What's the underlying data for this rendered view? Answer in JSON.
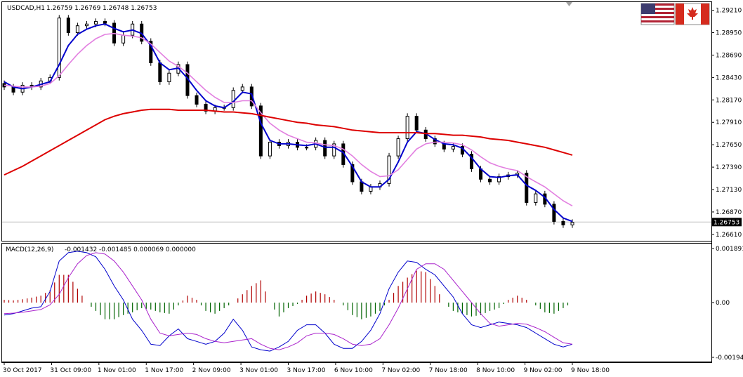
{
  "header": {
    "symbol": "USDCAD,H1",
    "ohlc": "1.26759 1.26769 1.26748 1.26753"
  },
  "macd_header": {
    "name": "MACD(12,26,9)",
    "values": "-0.001432 -0.001485 0.000069 0.000000"
  },
  "flags": {
    "base": "us-flag-icon",
    "quote": "canada-flag-icon"
  },
  "colors": {
    "candles": "#000000",
    "ma_fast": "#0000cc",
    "ma_mid": "#e27fe0",
    "ma_slow": "#dd0000",
    "macd_line": "#0000cc",
    "signal_line": "#aa22cc",
    "hist_pos": "#b00000",
    "hist_neg": "#006400",
    "grid": "#c0c0c0",
    "current_price_bg": "#000000"
  },
  "chart_data": [
    {
      "type": "line",
      "title": "USDCAD,H1",
      "price_axis_ticks": [
        "1.29210",
        "1.28950",
        "1.28690",
        "1.28430",
        "1.28170",
        "1.27910",
        "1.27650",
        "1.27390",
        "1.27130",
        "1.26870",
        "1.26610"
      ],
      "ylim": [
        1.2656,
        1.2928
      ],
      "current_price": "1.26753",
      "time_labels": [
        "30 Oct 2017",
        "31 Oct 09:00",
        "1 Nov 01:00",
        "1 Nov 17:00",
        "2 Nov 09:00",
        "3 Nov 01:00",
        "3 Nov 17:00",
        "6 Nov 10:00",
        "7 Nov 02:00",
        "7 Nov 18:00",
        "8 Nov 10:00",
        "9 Nov 02:00",
        "9 Nov 18:00"
      ],
      "series": [
        {
          "values": [
            1.2832,
            1.2826,
            1.2834,
            1.2832,
            1.2839,
            1.2843,
            1.2912,
            1.2895,
            1.2903,
            1.2905,
            1.2908,
            1.2906,
            1.2883,
            1.2892,
            1.2905,
            1.2885,
            1.286,
            1.2838,
            1.2848,
            1.2858,
            1.2822,
            1.2812,
            1.2804,
            1.2808,
            1.2808,
            1.2828,
            1.2832,
            1.281,
            1.2752,
            1.2768,
            1.2764,
            1.2768,
            1.2762,
            1.2762,
            1.277,
            1.2752,
            1.2766,
            1.2742,
            1.2722,
            1.2711,
            1.2716,
            1.272,
            1.2752,
            1.2772,
            1.2798,
            1.2782,
            1.2772,
            1.2766,
            1.276,
            1.2763,
            1.2754,
            1.2737,
            1.2725,
            1.2722,
            1.2728,
            1.273,
            1.2732,
            1.2698,
            1.2708,
            1.2696,
            1.2676,
            1.2672,
            1.2675
          ]
        },
        {
          "values": [
            1.2838,
            1.2832,
            1.283,
            1.2832,
            1.2835,
            1.2838,
            1.2858,
            1.288,
            1.2893,
            1.2899,
            1.2903,
            1.2905,
            1.29,
            1.2896,
            1.2898,
            1.2894,
            1.288,
            1.286,
            1.2852,
            1.2854,
            1.2842,
            1.2828,
            1.2816,
            1.281,
            1.2808,
            1.2815,
            1.2826,
            1.2824,
            1.279,
            1.277,
            1.2766,
            1.2766,
            1.2765,
            1.2764,
            1.2766,
            1.2762,
            1.2762,
            1.2756,
            1.274,
            1.2722,
            1.2716,
            1.2716,
            1.2725,
            1.2745,
            1.2768,
            1.278,
            1.2778,
            1.2771,
            1.2766,
            1.2765,
            1.2761,
            1.275,
            1.2737,
            1.2728,
            1.2727,
            1.2729,
            1.273,
            1.2718,
            1.2712,
            1.2704,
            1.269,
            1.268,
            1.2676
          ]
        },
        {
          "values": [
            1.2834,
            1.2833,
            1.2832,
            1.2832,
            1.2833,
            1.2836,
            1.2845,
            1.2858,
            1.287,
            1.288,
            1.2888,
            1.2893,
            1.2894,
            1.2892,
            1.2891,
            1.2889,
            1.2882,
            1.2872,
            1.2862,
            1.2856,
            1.2848,
            1.2838,
            1.2828,
            1.282,
            1.2814,
            1.2814,
            1.2816,
            1.2816,
            1.2802,
            1.279,
            1.2782,
            1.2776,
            1.2772,
            1.2768,
            1.2767,
            1.2765,
            1.2764,
            1.276,
            1.2752,
            1.2742,
            1.2734,
            1.2728,
            1.2729,
            1.2736,
            1.2748,
            1.276,
            1.2766,
            1.2768,
            1.2768,
            1.2767,
            1.2765,
            1.2759,
            1.2751,
            1.2744,
            1.274,
            1.2737,
            1.2735,
            1.2728,
            1.2722,
            1.2716,
            1.2708,
            1.27,
            1.2694
          ]
        },
        {
          "values": [
            1.273,
            1.2735,
            1.274,
            1.2746,
            1.2752,
            1.2758,
            1.2764,
            1.277,
            1.2776,
            1.2782,
            1.2788,
            1.2794,
            1.2798,
            1.2801,
            1.2803,
            1.2805,
            1.2806,
            1.2806,
            1.2806,
            1.2805,
            1.2805,
            1.2805,
            1.2805,
            1.2804,
            1.2803,
            1.2803,
            1.2802,
            1.2801,
            1.2799,
            1.2797,
            1.2795,
            1.2793,
            1.2791,
            1.279,
            1.2788,
            1.2787,
            1.2786,
            1.2784,
            1.2782,
            1.2781,
            1.278,
            1.2779,
            1.2779,
            1.2779,
            1.2779,
            1.2779,
            1.2778,
            1.2778,
            1.2777,
            1.2776,
            1.2776,
            1.2775,
            1.2774,
            1.2772,
            1.2771,
            1.277,
            1.2768,
            1.2766,
            1.2764,
            1.2762,
            1.2759,
            1.2756,
            1.2753
          ]
        }
      ]
    },
    {
      "type": "bar",
      "title": "MACD(12,26,9)",
      "axis_ticks": [
        "0.001891",
        "0.00",
        "-0.00194"
      ],
      "ylim": [
        -0.00205,
        0.002
      ],
      "values": [
        0.0001,
        8e-05,
        0.00012,
        0.00018,
        0.00025,
        0.00045,
        0.001,
        0.001,
        0.0005,
        0.0,
        -0.0003,
        -0.0006,
        -0.0006,
        -0.00045,
        -0.00035,
        -0.0002,
        -0.00025,
        -0.00035,
        -0.0004,
        -0.0001,
        0.00025,
        0.0001,
        -0.0003,
        -0.0004,
        -0.0002,
        0.0,
        0.0003,
        0.0006,
        0.0008,
        0.0,
        -0.0005,
        -0.0002,
        -5e-05,
        0.00025,
        0.0004,
        0.0003,
        0.0001,
        -0.0001,
        -0.00045,
        -0.0006,
        -0.0005,
        -0.0003,
        0.0001,
        0.0006,
        0.0009,
        0.00115,
        0.0011,
        0.0006,
        0.0,
        -0.0003,
        -0.0004,
        -0.0005,
        -0.00045,
        -0.0003,
        -0.0002,
        0.0001,
        0.00025,
        0.0001,
        -0.0001,
        -0.00035,
        -0.0004,
        -0.0002,
        0.0
      ]
    },
    {
      "type": "line",
      "title": "MACD(12,26,9)",
      "series": [
        {
          "values": [
            -0.00045,
            -0.0004,
            -0.0003,
            -0.0002,
            -0.00015,
            0.0004,
            0.0015,
            0.0018,
            0.00185,
            0.0018,
            0.00165,
            0.0012,
            0.0006,
            0.0001,
            -0.0006,
            -0.001,
            -0.0015,
            -0.00155,
            -0.0012,
            -0.00095,
            -0.0013,
            -0.0014,
            -0.0015,
            -0.0014,
            -0.0011,
            -0.0006,
            -0.001,
            -0.0016,
            -0.0017,
            -0.00175,
            -0.0016,
            -0.0014,
            -0.001,
            -0.0008,
            -0.0008,
            -0.0011,
            -0.0015,
            -0.00165,
            -0.00165,
            -0.0014,
            -0.001,
            -0.0004,
            0.0005,
            0.0011,
            0.0015,
            0.00145,
            0.0012,
            0.001,
            0.0006,
            0.0002,
            -0.0004,
            -0.0008,
            -0.0009,
            -0.0008,
            -0.0007,
            -0.00075,
            -0.0008,
            -0.0009,
            -0.0011,
            -0.0013,
            -0.0015,
            -0.0016,
            -0.0015
          ]
        },
        {
          "values": [
            -0.0004,
            -0.00038,
            -0.00035,
            -0.0003,
            -0.00025,
            -8e-05,
            0.0003,
            0.0009,
            0.0014,
            0.0017,
            0.0018,
            0.00175,
            0.0015,
            0.0011,
            0.0006,
            0.0001,
            -0.0006,
            -0.0011,
            -0.0012,
            -0.00115,
            -0.0011,
            -0.00115,
            -0.0013,
            -0.0014,
            -0.00145,
            -0.0014,
            -0.00135,
            -0.0013,
            -0.0015,
            -0.00165,
            -0.0017,
            -0.0016,
            -0.00145,
            -0.0012,
            -0.0011,
            -0.0011,
            -0.00115,
            -0.0013,
            -0.0015,
            -0.00155,
            -0.0015,
            -0.0013,
            -0.0008,
            -0.0002,
            0.0005,
            0.0012,
            0.0014,
            0.0014,
            0.0012,
            0.0008,
            0.0004,
            0.0,
            -0.0004,
            -0.00075,
            -0.00085,
            -0.0008,
            -0.00075,
            -0.00078,
            -0.0009,
            -0.00105,
            -0.00125,
            -0.00145,
            -0.0015
          ]
        }
      ]
    }
  ]
}
